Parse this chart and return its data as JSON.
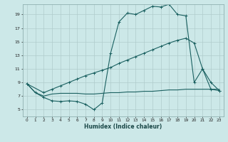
{
  "xlabel": "Humidex (Indice chaleur)",
  "bg_color": "#cce8e8",
  "grid_color": "#b0cccc",
  "line_color": "#1a6060",
  "xlim": [
    -0.5,
    23.5
  ],
  "ylim": [
    4.0,
    20.5
  ],
  "xticks": [
    0,
    1,
    2,
    3,
    4,
    5,
    6,
    7,
    8,
    9,
    10,
    11,
    12,
    13,
    14,
    15,
    16,
    17,
    18,
    19,
    20,
    21,
    22,
    23
  ],
  "yticks": [
    5,
    7,
    9,
    11,
    13,
    15,
    17,
    19
  ],
  "line1_x": [
    0,
    1,
    2,
    3,
    4,
    5,
    6,
    7,
    8,
    9,
    10,
    11,
    12,
    13,
    14,
    15,
    16,
    17,
    18,
    19,
    20,
    21,
    22,
    23
  ],
  "line1_y": [
    8.8,
    7.5,
    6.8,
    6.3,
    6.2,
    6.3,
    6.2,
    5.8,
    5.0,
    6.0,
    13.3,
    17.9,
    19.2,
    19.0,
    19.6,
    20.2,
    20.1,
    20.5,
    19.0,
    18.8,
    9.0,
    11.0,
    9.0,
    7.8
  ],
  "line2_x": [
    0,
    2,
    3,
    4,
    5,
    6,
    7,
    8,
    9,
    10,
    11,
    12,
    13,
    14,
    15,
    16,
    17,
    18,
    19,
    20,
    21,
    22,
    23
  ],
  "line2_y": [
    8.8,
    7.5,
    8.0,
    8.5,
    9.0,
    9.5,
    10.0,
    10.4,
    10.8,
    11.2,
    11.8,
    12.3,
    12.8,
    13.3,
    13.8,
    14.3,
    14.8,
    15.2,
    15.5,
    14.8,
    11.0,
    8.0,
    7.8
  ],
  "line3_x": [
    0,
    1,
    2,
    3,
    4,
    5,
    6,
    7,
    8,
    9,
    10,
    11,
    12,
    13,
    14,
    15,
    16,
    17,
    18,
    19,
    20,
    21,
    22,
    23
  ],
  "line3_y": [
    8.8,
    7.5,
    7.0,
    7.3,
    7.4,
    7.4,
    7.4,
    7.3,
    7.3,
    7.4,
    7.5,
    7.5,
    7.6,
    7.6,
    7.7,
    7.7,
    7.8,
    7.9,
    7.9,
    8.0,
    8.0,
    8.0,
    8.0,
    8.0
  ],
  "tick_fontsize": 4.2,
  "xlabel_fontsize": 5.5
}
